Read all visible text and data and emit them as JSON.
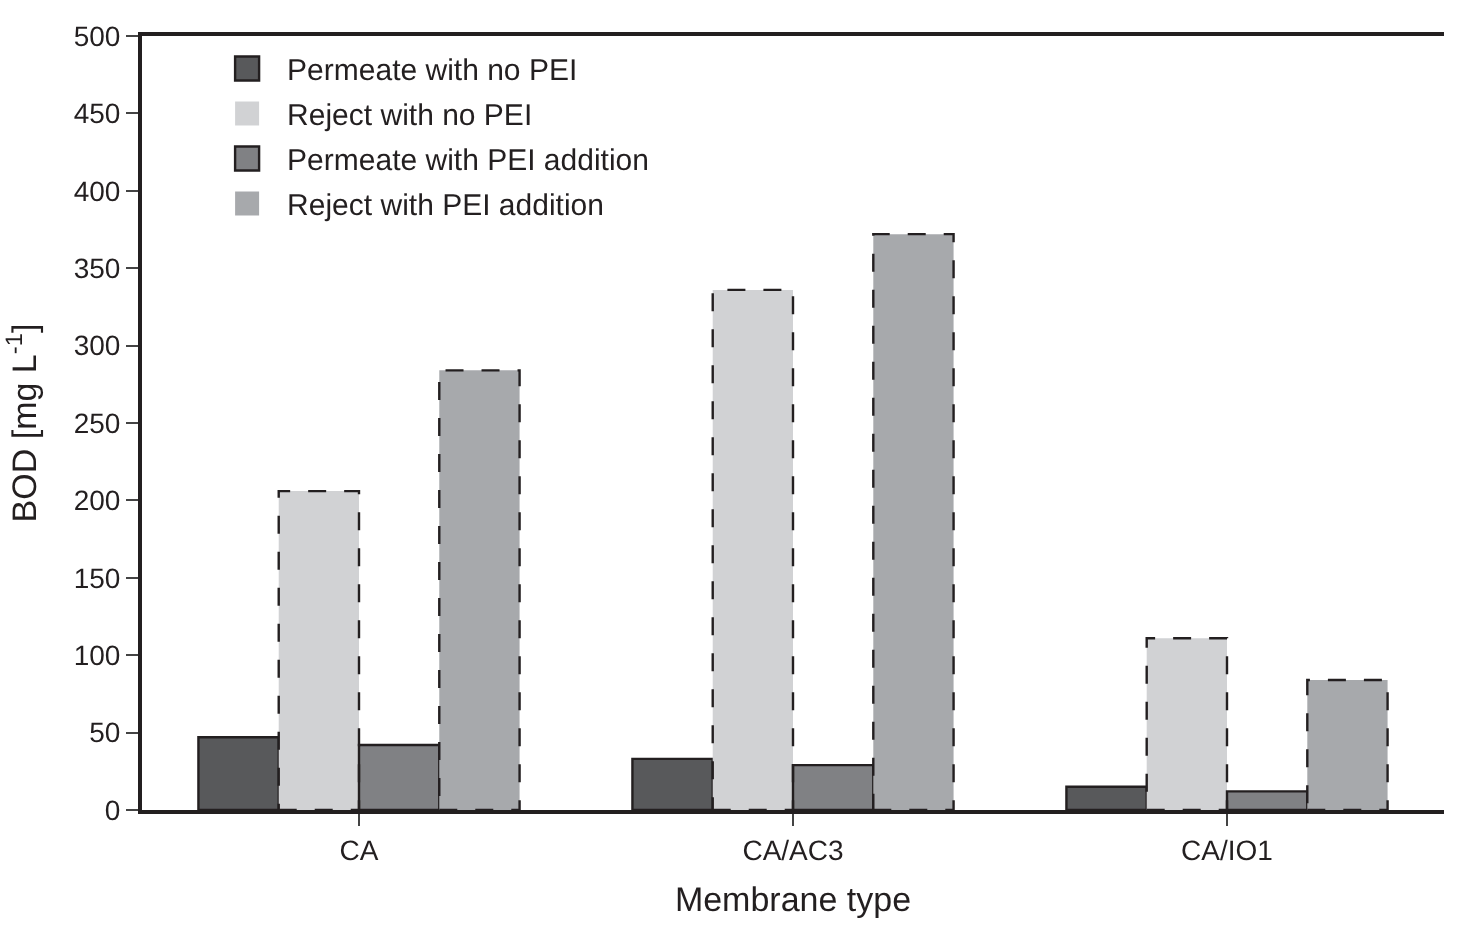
{
  "chart_data": {
    "type": "bar",
    "xlabel": "Membrane type",
    "ylabel": "BOD [mg L$^{-1}$]",
    "categories": [
      "CA",
      "CA/AC3",
      "CA/IO1"
    ],
    "series": [
      {
        "name": "Permeate with no PEI",
        "color": "#58595b",
        "line_style": "solid",
        "values": [
          47,
          33,
          15
        ]
      },
      {
        "name": "Reject with no PEI",
        "color": "#d1d2d4",
        "line_style": "dashed",
        "values": [
          206,
          336,
          111
        ]
      },
      {
        "name": "Permeate with PEI addition",
        "color": "#808184",
        "line_style": "solid",
        "values": [
          42,
          29,
          12
        ]
      },
      {
        "name": "Reject with PEI addition",
        "color": "#a7a9ac",
        "line_style": "dashed",
        "values": [
          284,
          372,
          84
        ]
      }
    ],
    "ylim": [
      0,
      500
    ],
    "yticks": [
      0,
      50,
      100,
      150,
      200,
      250,
      300,
      350,
      400,
      450,
      500
    ],
    "legend": "top left"
  }
}
